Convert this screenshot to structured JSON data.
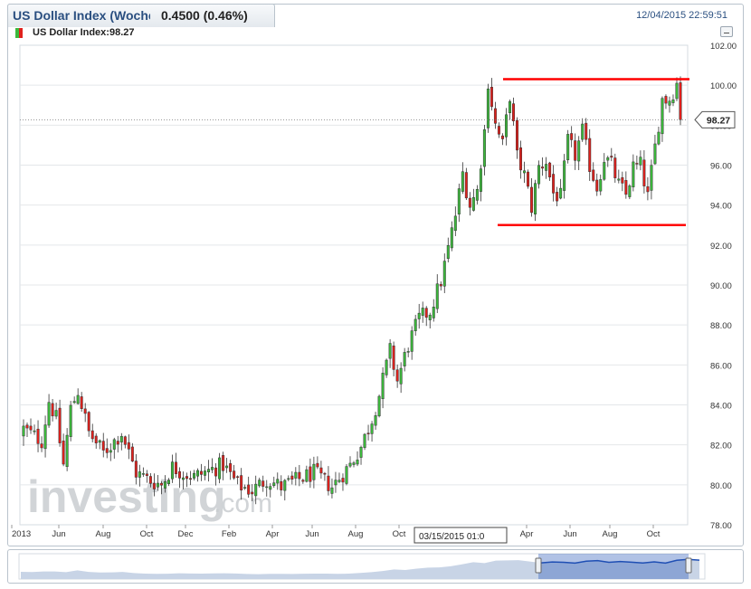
{
  "header": {
    "title": "US Dollar Index (Woche",
    "change": "0.4500 (0.46%)",
    "timestamp": "12/04/2015 22:59:51",
    "subtitle": "US Dollar Index:98.27"
  },
  "watermark": {
    "text": "investing",
    "suffix": ".com"
  },
  "colors": {
    "up": "#3cb93c",
    "down": "#e0211d",
    "annotation": "#ff0000",
    "navigator": "#1f4fb4"
  },
  "chart_data": {
    "type": "candlestick",
    "ylim": [
      78,
      102
    ],
    "y_ticks": [
      "78.00",
      "80.00",
      "82.00",
      "84.00",
      "86.00",
      "88.00",
      "90.00",
      "92.00",
      "94.00",
      "96.00",
      "98.00",
      "100.00",
      "102.00"
    ],
    "x_ticks": [
      "2013",
      "Jun",
      "Aug",
      "Oct",
      "Dec",
      "Feb",
      "Apr",
      "Jun",
      "Aug",
      "Oct",
      "Apr",
      "Jun",
      "Aug",
      "Oct"
    ],
    "crosshair_label": "03/15/2015 01:0",
    "last_price": "98.27",
    "last_value": 98.27,
    "resistance_level": 100.3,
    "support_level": 93.0,
    "anchors": [
      [
        0,
        82.8
      ],
      [
        5,
        82.2
      ],
      [
        7,
        84.2
      ],
      [
        9,
        83.3
      ],
      [
        11,
        81.0
      ],
      [
        13,
        83.8
      ],
      [
        15,
        84.7
      ],
      [
        18,
        82.6
      ],
      [
        22,
        81.6
      ],
      [
        27,
        82.6
      ],
      [
        31,
        80.6
      ],
      [
        35,
        80.2
      ],
      [
        38,
        80.0
      ],
      [
        41,
        80.9
      ],
      [
        44,
        80.6
      ],
      [
        47,
        80.4
      ],
      [
        51,
        80.7
      ],
      [
        55,
        81.0
      ],
      [
        59,
        80.0
      ],
      [
        63,
        79.7
      ],
      [
        67,
        80.3
      ],
      [
        71,
        79.9
      ],
      [
        75,
        80.2
      ],
      [
        80,
        80.6
      ],
      [
        85,
        79.9
      ],
      [
        90,
        81.0
      ],
      [
        93,
        81.9
      ],
      [
        96,
        83.3
      ],
      [
        98,
        84.5
      ],
      [
        101,
        86.7
      ],
      [
        103,
        85.2
      ],
      [
        106,
        87.0
      ],
      [
        109,
        88.3
      ],
      [
        112,
        88.7
      ],
      [
        115,
        90.2
      ],
      [
        117,
        91.8
      ],
      [
        119,
        93.5
      ],
      [
        121,
        95.6
      ],
      [
        123,
        94.0
      ],
      [
        125,
        94.7
      ],
      [
        127,
        97.7
      ],
      [
        128,
        100.2
      ],
      [
        130,
        98.0
      ],
      [
        132,
        97.0
      ],
      [
        134,
        99.5
      ],
      [
        136,
        96.4
      ],
      [
        138,
        95.5
      ],
      [
        140,
        93.9
      ],
      [
        142,
        95.9
      ],
      [
        144,
        96.2
      ],
      [
        146,
        94.6
      ],
      [
        148,
        94.4
      ],
      [
        150,
        97.2
      ],
      [
        152,
        96.5
      ],
      [
        154,
        97.7
      ],
      [
        156,
        96.0
      ],
      [
        158,
        94.9
      ],
      [
        160,
        96.4
      ],
      [
        162,
        96.0
      ],
      [
        164,
        95.0
      ],
      [
        166,
        94.5
      ],
      [
        168,
        95.9
      ],
      [
        170,
        96.0
      ],
      [
        172,
        94.4
      ],
      [
        174,
        96.9
      ],
      [
        176,
        99.3
      ],
      [
        178,
        99.3
      ],
      [
        180,
        100.1
      ],
      [
        181,
        98.3
      ]
    ]
  }
}
